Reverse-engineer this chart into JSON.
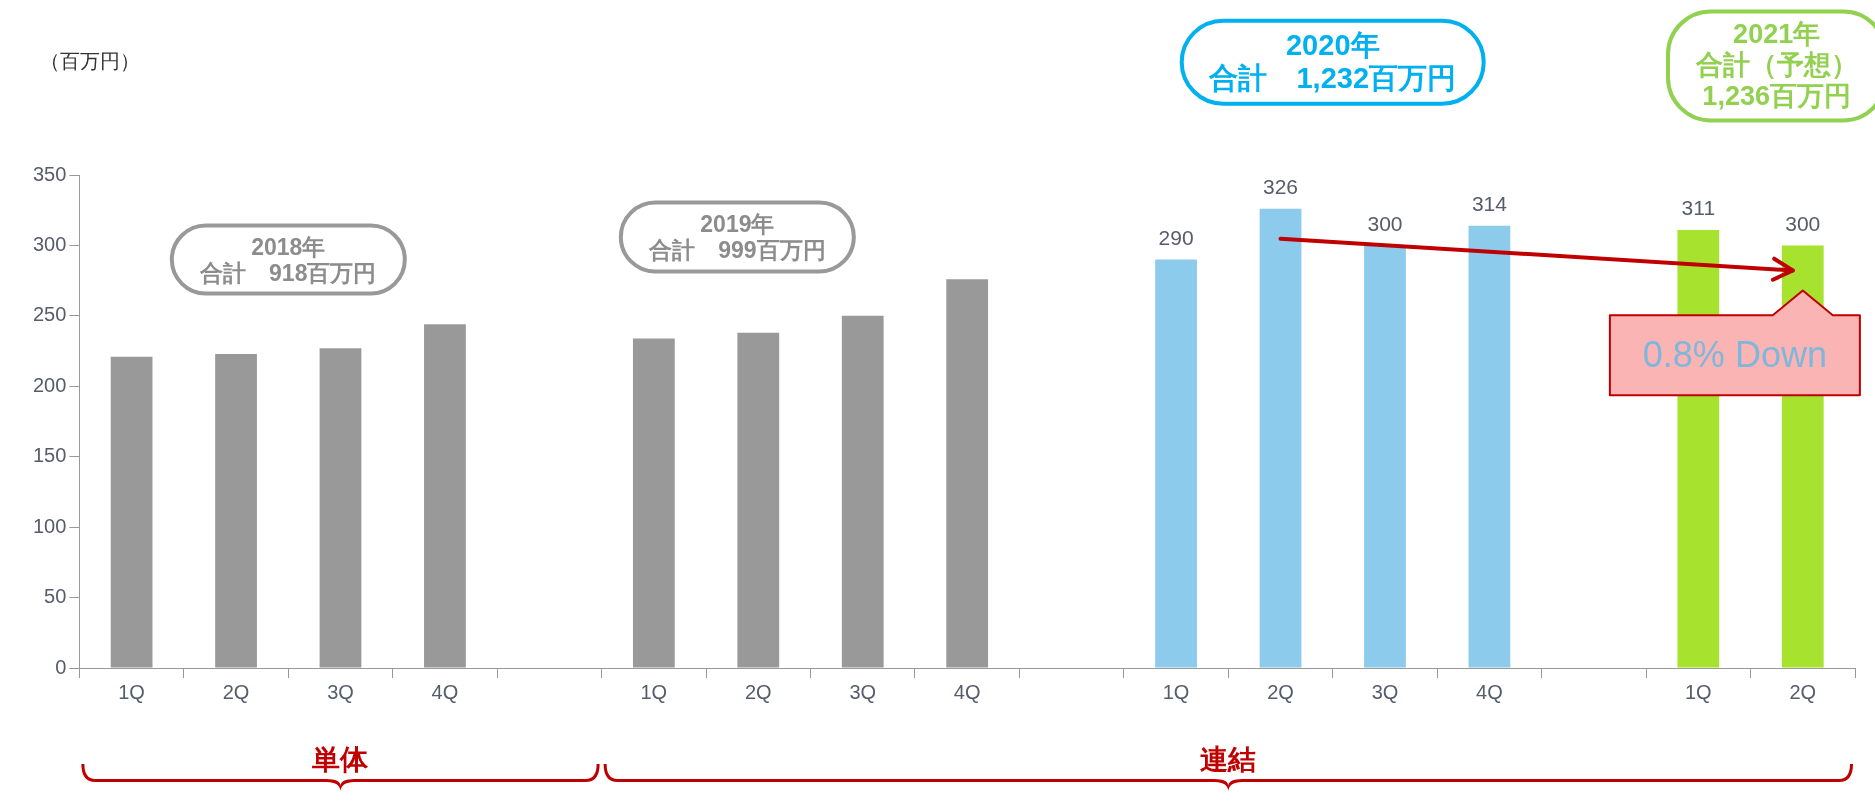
{
  "chart_data": {
    "type": "bar",
    "ylabel": "（百万円）",
    "categories": [
      "1Q",
      "2Q",
      "3Q",
      "4Q",
      null,
      "1Q",
      "2Q",
      "3Q",
      "4Q",
      null,
      "1Q",
      "2Q",
      "3Q",
      "4Q",
      null,
      "1Q",
      "2Q"
    ],
    "series": [
      {
        "color": "#999999",
        "values": [
          221,
          223,
          227,
          244,
          null,
          234,
          238,
          250,
          276,
          null,
          null,
          null,
          null,
          null,
          null,
          null,
          null
        ]
      },
      {
        "color": "#8ccbec",
        "values": [
          null,
          null,
          null,
          null,
          null,
          null,
          null,
          null,
          null,
          null,
          290,
          326,
          300,
          314,
          null,
          null,
          null
        ],
        "value_labels": [
          null,
          null,
          null,
          null,
          null,
          null,
          null,
          null,
          null,
          null,
          "290",
          "326",
          "300",
          "314",
          null,
          null,
          null
        ]
      },
      {
        "color": "#a6e22e",
        "values": [
          null,
          null,
          null,
          null,
          null,
          null,
          null,
          null,
          null,
          null,
          null,
          null,
          null,
          null,
          null,
          311,
          300
        ],
        "value_labels": [
          null,
          null,
          null,
          null,
          null,
          null,
          null,
          null,
          null,
          null,
          null,
          null,
          null,
          null,
          null,
          "311",
          "300"
        ]
      }
    ],
    "ylim": [
      0,
      350
    ],
    "yticks": [
      0,
      50,
      100,
      150,
      200,
      250,
      300,
      350
    ],
    "grid": false,
    "legend": false,
    "annotations": [
      "2018年",
      "合計　918百万円",
      "2019年",
      "合計　999百万円",
      "2020年",
      "合計　1,232百万円",
      "2021年",
      "合計（予想）",
      "1,236百万円",
      "0.8% Down",
      "単体",
      "連結"
    ]
  }
}
